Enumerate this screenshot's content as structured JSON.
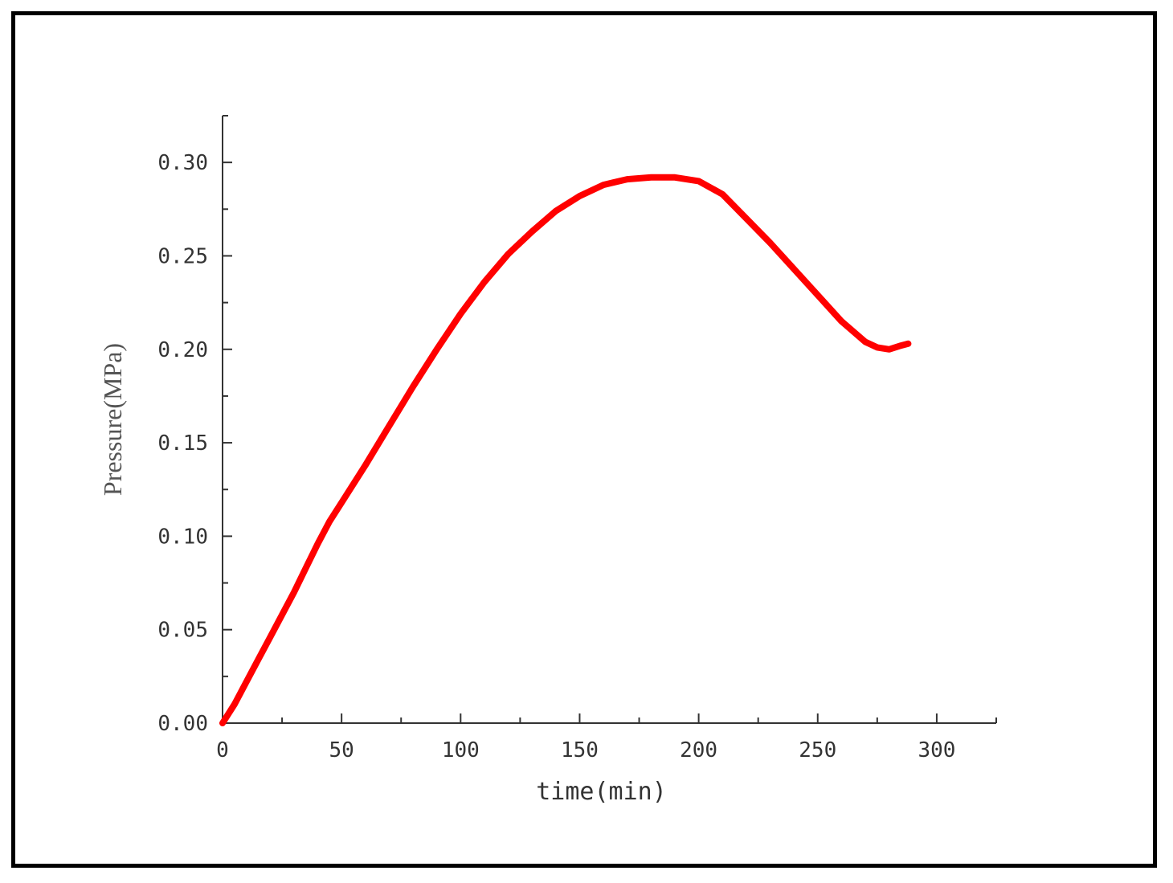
{
  "chart_data": {
    "type": "line",
    "title": "",
    "xlabel": "time(min)",
    "ylabel": "Pressure(MPa)",
    "xlim": [
      0,
      325
    ],
    "ylim": [
      0,
      0.325
    ],
    "xticks": [
      0,
      50,
      100,
      150,
      200,
      250,
      300
    ],
    "yticks": [
      0.0,
      0.05,
      0.1,
      0.15,
      0.2,
      0.25,
      0.3
    ],
    "xtick_labels": [
      "0",
      "50",
      "100",
      "150",
      "200",
      "250",
      "300"
    ],
    "ytick_labels": [
      "0.00",
      "0.05",
      "0.10",
      "0.15",
      "0.20",
      "0.25",
      "0.30"
    ],
    "grid": false,
    "series_color": "#ff0000",
    "series": [
      {
        "x": [
          0,
          5,
          10,
          15,
          20,
          25,
          30,
          35,
          40,
          45,
          50,
          60,
          70,
          80,
          90,
          100,
          110,
          120,
          130,
          140,
          150,
          160,
          170,
          180,
          190,
          200,
          210,
          220,
          230,
          240,
          250,
          260,
          270,
          275,
          280,
          285,
          288
        ],
        "y": [
          0.0,
          0.01,
          0.022,
          0.034,
          0.046,
          0.058,
          0.07,
          0.083,
          0.096,
          0.108,
          0.118,
          0.138,
          0.159,
          0.18,
          0.2,
          0.219,
          0.236,
          0.251,
          0.263,
          0.274,
          0.282,
          0.288,
          0.291,
          0.292,
          0.292,
          0.29,
          0.283,
          0.27,
          0.257,
          0.243,
          0.229,
          0.215,
          0.204,
          0.201,
          0.2,
          0.202,
          0.203
        ]
      }
    ]
  }
}
